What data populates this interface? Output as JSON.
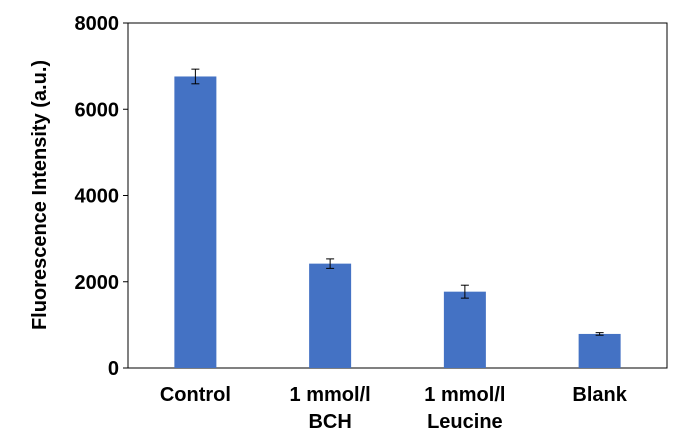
{
  "chart_data": {
    "type": "bar",
    "title": "",
    "xlabel": "",
    "ylabel": "Fluorescence Intensity (a.u.)",
    "ylim": [
      0,
      8000
    ],
    "yticks": [
      0,
      2000,
      4000,
      6000,
      8000
    ],
    "ytick_labels": [
      "0",
      "2000",
      "4000",
      "6000",
      "8000"
    ],
    "categories": [
      [
        "Control"
      ],
      [
        "1 mmol/l",
        "BCH"
      ],
      [
        "1 mmol/l",
        "Leucine"
      ],
      [
        "Blank"
      ]
    ],
    "values": [
      6760,
      2420,
      1770,
      790
    ],
    "errors": [
      170,
      110,
      150,
      30
    ],
    "grid": false,
    "legend": "none",
    "colors": {
      "bar": "#4472C4",
      "axis": "#000000",
      "error_bar": "#000000"
    }
  }
}
